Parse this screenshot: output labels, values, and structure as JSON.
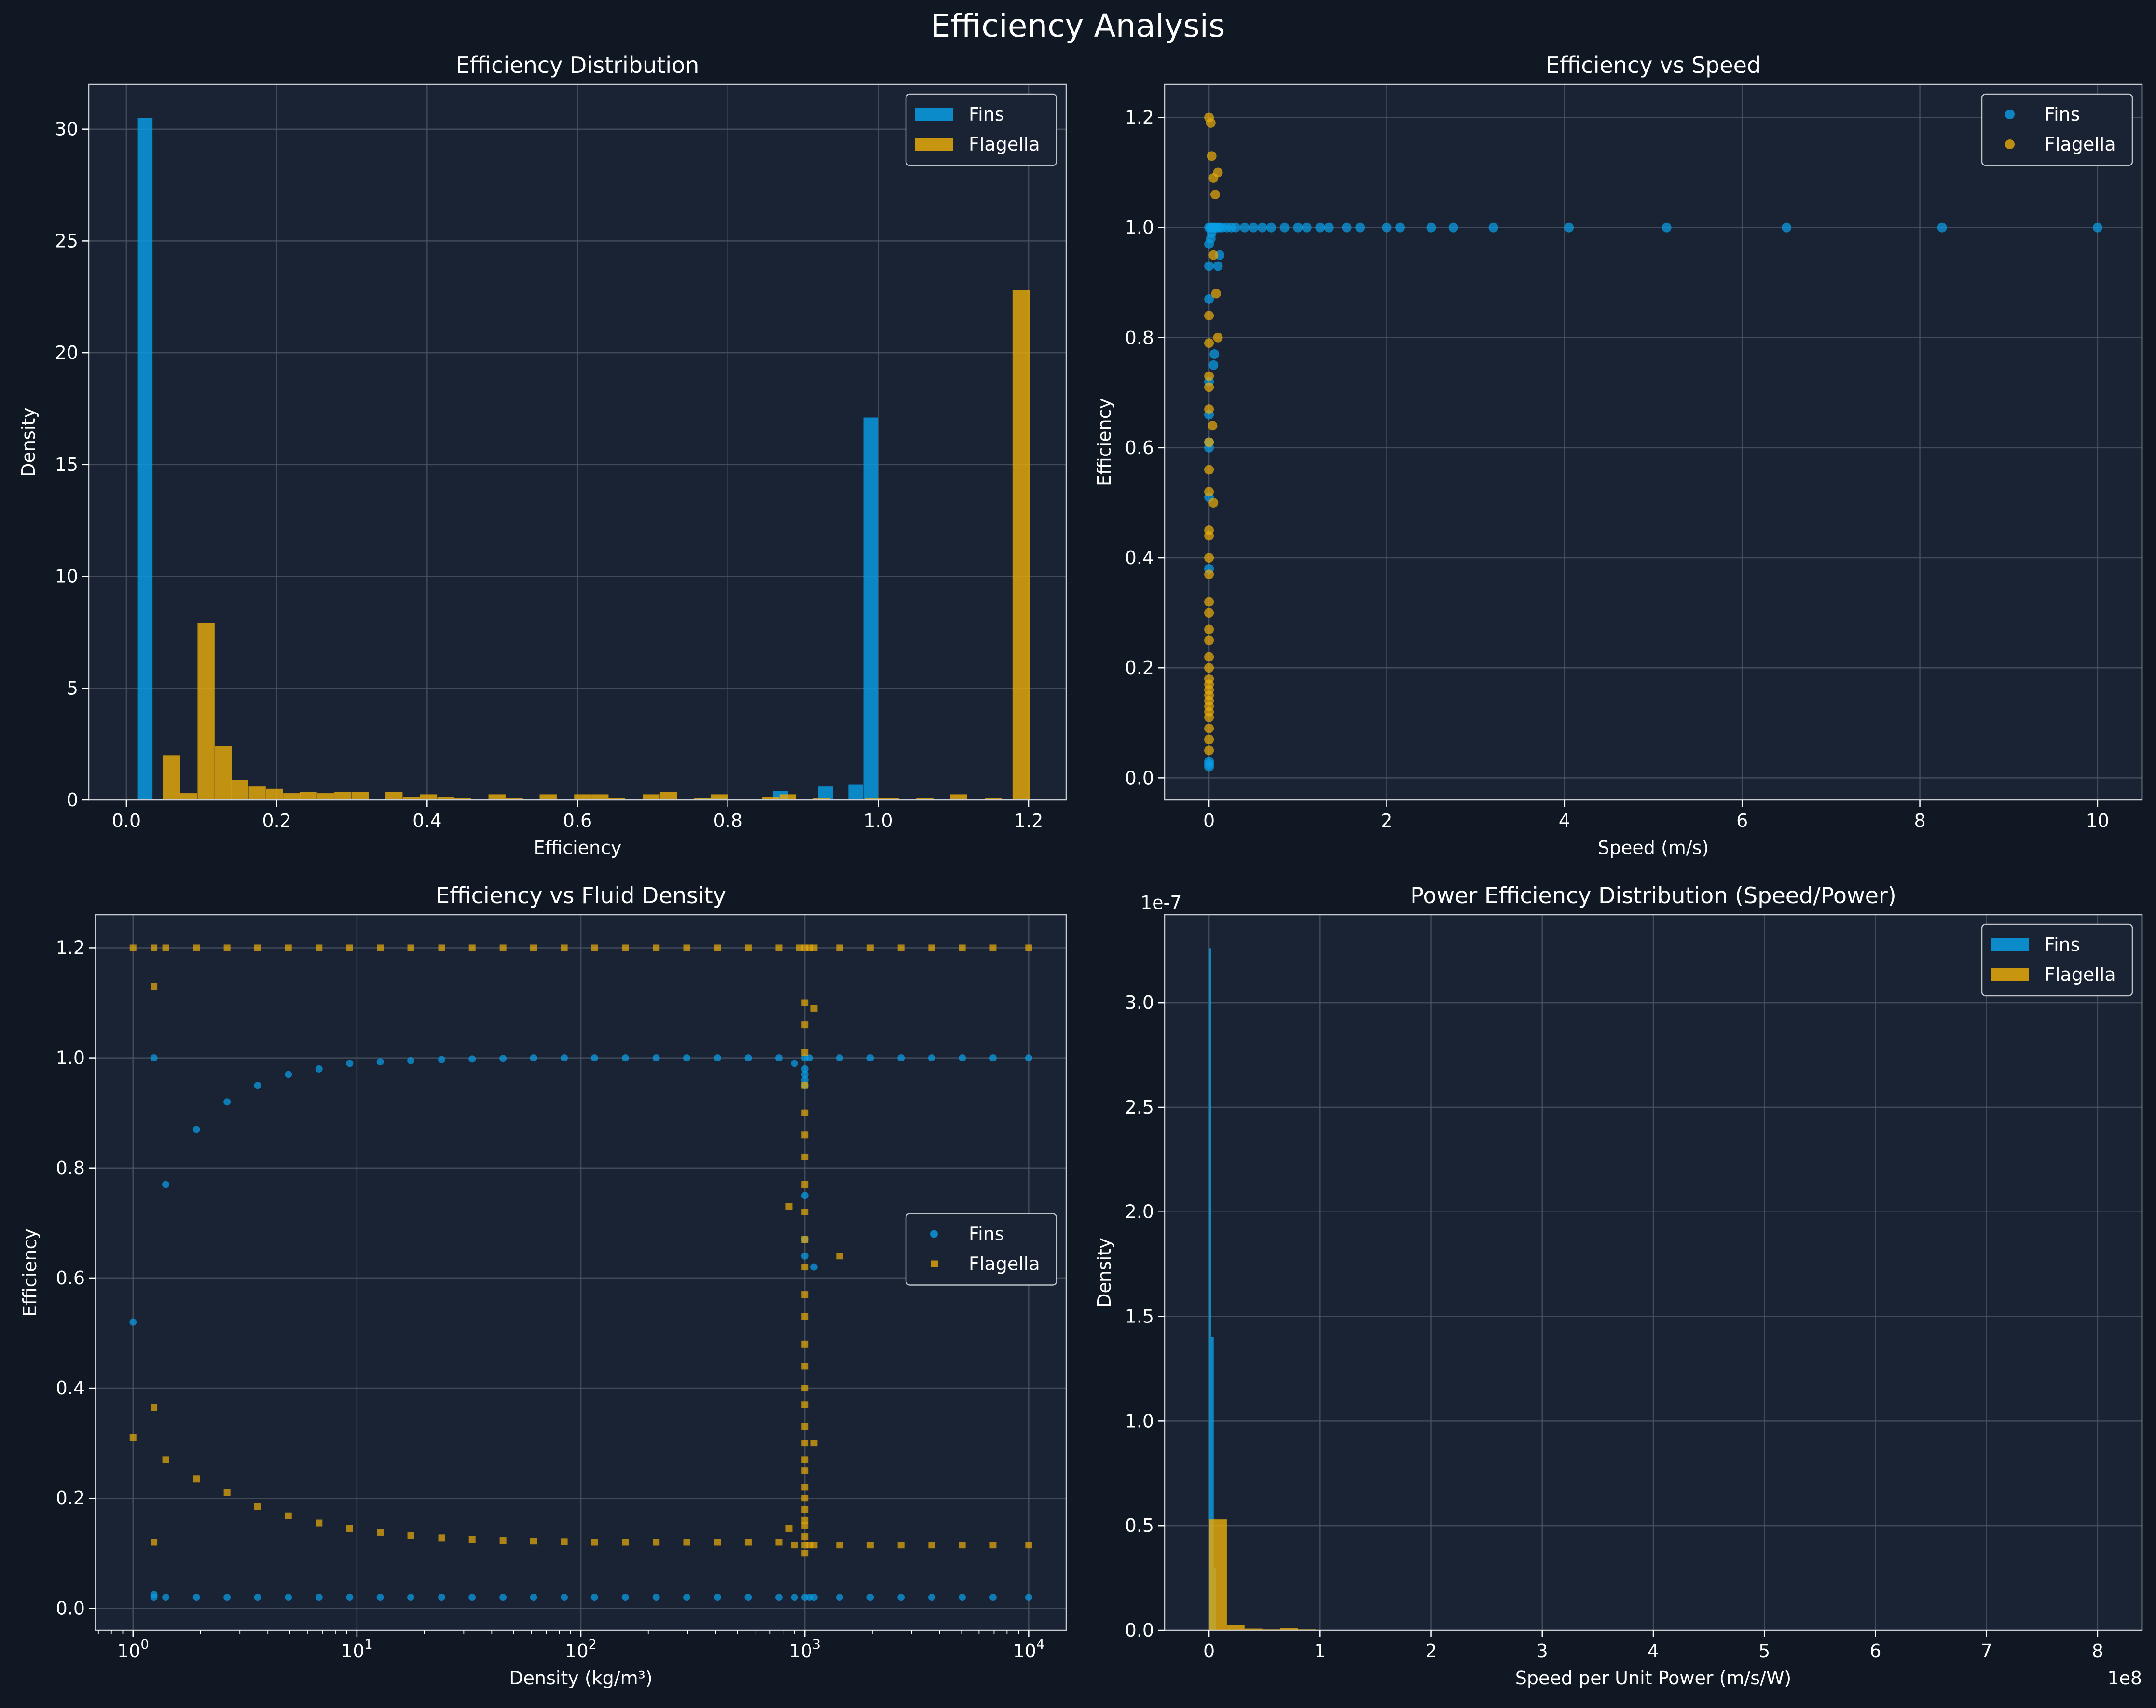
{
  "figure": {
    "title": "Efficiency Analysis"
  },
  "colors": {
    "background": "#0f1823",
    "axes": "#1a2333",
    "grid": "#4d5766",
    "fins": "#0a9ee6",
    "flagella": "#e6a90a",
    "text": "#ffffff"
  },
  "chart_data": [
    {
      "type": "bar",
      "title": "Efficiency Distribution",
      "xlabel": "Efficiency",
      "ylabel": "Density",
      "xlim": [
        -0.05,
        1.25
      ],
      "ylim": [
        0,
        32
      ],
      "xticks": [
        0.0,
        0.2,
        0.4,
        0.6,
        0.8,
        1.0,
        1.2
      ],
      "xtick_labels": [
        "0.0",
        "0.2",
        "0.4",
        "0.6",
        "0.8",
        "1.0",
        "1.2"
      ],
      "yticks": [
        0,
        5,
        10,
        15,
        20,
        25,
        30
      ],
      "ytick_labels": [
        "0",
        "5",
        "10",
        "15",
        "20",
        "25",
        "30"
      ],
      "legend_position": "upper-right",
      "series": [
        {
          "name": "Fins",
          "bar_width": 0.0196,
          "x": [
            0.025,
            0.77,
            0.79,
            0.87,
            0.93,
            0.97,
            0.99
          ],
          "values": [
            30.5,
            0.1,
            0.1,
            0.4,
            0.6,
            0.7,
            17.1
          ]
        },
        {
          "name": "Flagella",
          "bar_width": 0.0227,
          "x": [
            0.06,
            0.083,
            0.106,
            0.129,
            0.151,
            0.174,
            0.197,
            0.22,
            0.242,
            0.265,
            0.288,
            0.311,
            0.356,
            0.379,
            0.402,
            0.425,
            0.447,
            0.493,
            0.516,
            0.561,
            0.607,
            0.63,
            0.652,
            0.698,
            0.721,
            0.766,
            0.789,
            0.857,
            0.88,
            0.925,
            0.994,
            1.016,
            1.062,
            1.107,
            1.153,
            1.19
          ],
          "values": [
            2.0,
            0.3,
            7.9,
            2.4,
            0.9,
            0.6,
            0.5,
            0.3,
            0.35,
            0.3,
            0.35,
            0.35,
            0.35,
            0.15,
            0.25,
            0.15,
            0.1,
            0.25,
            0.1,
            0.25,
            0.25,
            0.25,
            0.1,
            0.25,
            0.35,
            0.1,
            0.25,
            0.15,
            0.25,
            0.1,
            0.1,
            0.1,
            0.1,
            0.25,
            0.1,
            22.8
          ]
        }
      ]
    },
    {
      "type": "scatter",
      "title": "Efficiency vs Speed",
      "xlabel": "Speed (m/s)",
      "ylabel": "Efficiency",
      "xlim": [
        -0.5,
        10.5
      ],
      "ylim": [
        -0.04,
        1.26
      ],
      "xticks": [
        0,
        2,
        4,
        6,
        8,
        10
      ],
      "xtick_labels": [
        "0",
        "2",
        "4",
        "6",
        "8",
        "10"
      ],
      "yticks": [
        0.0,
        0.2,
        0.4,
        0.6,
        0.8,
        1.0,
        1.2
      ],
      "ytick_labels": [
        "0.0",
        "0.2",
        "0.4",
        "0.6",
        "0.8",
        "1.0",
        "1.2"
      ],
      "legend_position": "upper-right",
      "series": [
        {
          "name": "Fins",
          "x": [
            0,
            0,
            0,
            0,
            0,
            0,
            0,
            0,
            0,
            0,
            0,
            0,
            0,
            0.02,
            0.03,
            0.05,
            0.06,
            0.08,
            0.1,
            0.12,
            0.15,
            0.2,
            0.25,
            0.3,
            0.4,
            0.5,
            0.6,
            0.7,
            0.85,
            1.0,
            1.1,
            1.25,
            1.35,
            1.55,
            1.7,
            2.0,
            2.15,
            2.5,
            2.75,
            3.2,
            4.05,
            5.15,
            6.5,
            8.25,
            10.0,
            0.05,
            0.06,
            0.1,
            0.12,
            0.02,
            0.03
          ],
          "y": [
            0.02,
            0.025,
            0.03,
            0.38,
            0.51,
            0.6,
            0.61,
            0.66,
            0.72,
            0.87,
            0.93,
            0.97,
            1.0,
            1.0,
            1.0,
            1.0,
            1.0,
            1.0,
            1.0,
            1.0,
            1.0,
            1.0,
            1.0,
            1.0,
            1.0,
            1.0,
            1.0,
            1.0,
            1.0,
            1.0,
            1.0,
            1.0,
            1.0,
            1.0,
            1.0,
            1.0,
            1.0,
            1.0,
            1.0,
            1.0,
            1.0,
            1.0,
            1.0,
            1.0,
            1.0,
            0.75,
            0.77,
            0.93,
            0.95,
            0.98,
            0.99
          ]
        },
        {
          "name": "Flagella",
          "x": [
            0,
            0,
            0,
            0,
            0,
            0,
            0,
            0,
            0,
            0,
            0,
            0,
            0,
            0,
            0,
            0,
            0,
            0,
            0,
            0,
            0,
            0,
            0,
            0,
            0,
            0,
            0,
            0,
            0,
            0,
            0.02,
            0.03,
            0.05,
            0.07,
            0.1,
            0.05,
            0.08,
            0.04,
            0.1,
            0.05
          ],
          "y": [
            0.05,
            0.07,
            0.09,
            0.11,
            0.12,
            0.13,
            0.14,
            0.15,
            0.16,
            0.17,
            0.18,
            0.2,
            0.22,
            0.25,
            0.27,
            0.3,
            0.32,
            0.37,
            0.4,
            0.44,
            0.45,
            0.52,
            0.56,
            0.61,
            0.67,
            0.71,
            0.73,
            0.79,
            0.84,
            1.2,
            1.19,
            1.13,
            1.09,
            1.06,
            1.1,
            0.95,
            0.88,
            0.64,
            0.8,
            0.5
          ]
        }
      ]
    },
    {
      "type": "scatter",
      "title": "Efficiency vs Fluid Density",
      "xlabel": "Density (kg/m³)",
      "ylabel": "Efficiency",
      "xscale": "log",
      "xlim": [
        0.68,
        14700
      ],
      "ylim": [
        -0.04,
        1.26
      ],
      "xticks": [
        1,
        10,
        100,
        1000,
        10000
      ],
      "xtick_base": "10",
      "xtick_exponents": [
        "0",
        "1",
        "2",
        "3",
        "4"
      ],
      "yticks": [
        0.0,
        0.2,
        0.4,
        0.6,
        0.8,
        1.0,
        1.2
      ],
      "ytick_labels": [
        "0.0",
        "0.2",
        "0.4",
        "0.6",
        "0.8",
        "1.0",
        "1.2"
      ],
      "legend_position": "center-right",
      "series": [
        {
          "name": "Fins",
          "marker": "circle",
          "x": [
            1,
            1.24,
            1.4,
            1.92,
            2.63,
            3.6,
            4.94,
            6.77,
            9.28,
            12.7,
            17.4,
            23.9,
            32.7,
            44.9,
            61.5,
            84.3,
            115,
            158,
            217,
            297,
            408,
            559,
            766,
            900,
            1000,
            1000,
            1000,
            1000,
            1000,
            1000,
            1000,
            1000,
            1100,
            1050,
            1430,
            1960,
            2690,
            3690,
            5050,
            6930,
            10000,
            1.24,
            1.4,
            1.92,
            2.63,
            3.6,
            4.94,
            6.77,
            9.28,
            12.7,
            17.4,
            23.9,
            32.7,
            44.9,
            61.5,
            84.3,
            115,
            158,
            217,
            297,
            408,
            559,
            766,
            900,
            1000,
            1050,
            1100,
            1430,
            1960,
            2690,
            3690,
            5050,
            6930,
            10000,
            1.24
          ],
          "y": [
            0.52,
            1.0,
            0.77,
            0.87,
            0.92,
            0.95,
            0.97,
            0.98,
            0.99,
            0.993,
            0.995,
            0.997,
            0.998,
            0.999,
            1.0,
            1.0,
            1.0,
            1.0,
            1.0,
            1.0,
            1.0,
            1.0,
            1.0,
            0.99,
            0.75,
            0.67,
            0.64,
            0.95,
            0.96,
            0.97,
            0.98,
            1.0,
            0.62,
            1.0,
            1.0,
            1.0,
            1.0,
            1.0,
            1.0,
            1.0,
            1.0,
            0.02,
            0.02,
            0.02,
            0.02,
            0.02,
            0.02,
            0.02,
            0.02,
            0.02,
            0.02,
            0.02,
            0.02,
            0.02,
            0.02,
            0.02,
            0.02,
            0.02,
            0.02,
            0.02,
            0.02,
            0.02,
            0.02,
            0.02,
            0.02,
            0.02,
            0.02,
            0.02,
            0.02,
            0.02,
            0.02,
            0.02,
            0.02,
            0.02,
            0.025
          ]
        },
        {
          "name": "Flagella",
          "marker": "square",
          "x": [
            1,
            1.24,
            1.4,
            1.92,
            2.63,
            3.6,
            4.94,
            6.77,
            9.28,
            12.7,
            17.4,
            23.9,
            32.7,
            44.9,
            61.5,
            84.3,
            115,
            158,
            217,
            297,
            408,
            559,
            766,
            950,
            1000,
            1050,
            1100,
            1430,
            1960,
            2690,
            3690,
            5050,
            6930,
            10000,
            1,
            1.24,
            1.4,
            1.92,
            2.63,
            3.6,
            4.94,
            6.77,
            9.28,
            12.7,
            17.4,
            23.9,
            32.7,
            44.9,
            61.5,
            84.3,
            115,
            158,
            217,
            297,
            408,
            559,
            766,
            850,
            1000,
            1000,
            1000,
            1000,
            1000,
            1000,
            1000,
            1000,
            1000,
            1000,
            1000,
            1000,
            1000,
            1000,
            1000,
            1000,
            1000,
            1000,
            1000,
            1000,
            1000,
            1000,
            1000,
            1000,
            1000,
            1000,
            1000,
            1000,
            1100,
            1100,
            1430,
            1.24,
            1.24,
            850,
            900,
            1000,
            1050,
            1100,
            1430,
            1960,
            2690,
            3690,
            5050,
            6930,
            10000
          ],
          "y": [
            1.2,
            1.2,
            1.2,
            1.2,
            1.2,
            1.2,
            1.2,
            1.2,
            1.2,
            1.2,
            1.2,
            1.2,
            1.2,
            1.2,
            1.2,
            1.2,
            1.2,
            1.2,
            1.2,
            1.2,
            1.2,
            1.2,
            1.2,
            1.2,
            1.2,
            1.2,
            1.2,
            1.2,
            1.2,
            1.2,
            1.2,
            1.2,
            1.2,
            1.2,
            0.31,
            0.365,
            0.27,
            0.235,
            0.21,
            0.185,
            0.168,
            0.155,
            0.145,
            0.138,
            0.132,
            0.128,
            0.125,
            0.123,
            0.122,
            0.121,
            0.12,
            0.12,
            0.12,
            0.12,
            0.12,
            0.12,
            0.12,
            0.73,
            1.1,
            1.06,
            1.01,
            0.95,
            0.9,
            0.86,
            0.82,
            0.77,
            0.72,
            0.67,
            0.62,
            0.57,
            0.53,
            0.48,
            0.44,
            0.4,
            0.37,
            0.33,
            0.3,
            0.27,
            0.25,
            0.22,
            0.2,
            0.18,
            0.16,
            0.15,
            0.13,
            0.1,
            1.09,
            0.3,
            0.64,
            1.13,
            0.12,
            0.145,
            0.115,
            0.115,
            0.115,
            0.115,
            0.115,
            0.115,
            0.115,
            0.115,
            0.115,
            0.115,
            0.115
          ]
        }
      ]
    },
    {
      "type": "bar",
      "title": "Power Efficiency Distribution (Speed/Power)",
      "xlabel": "Speed per Unit Power (m/s/W)",
      "ylabel": "Density",
      "xlim": [
        -40000000.0,
        840000000.0
      ],
      "ylim": [
        0,
        3.42e-07
      ],
      "xticks": [
        0,
        100000000.0,
        200000000.0,
        300000000.0,
        400000000.0,
        500000000.0,
        600000000.0,
        700000000.0,
        800000000.0
      ],
      "xtick_labels": [
        "0",
        "1",
        "2",
        "3",
        "4",
        "5",
        "6",
        "7",
        "8"
      ],
      "x_offset_label": "1e8",
      "yticks": [
        0,
        5e-08,
        1e-07,
        1.5e-07,
        2e-07,
        2.5e-07,
        3e-07
      ],
      "ytick_labels": [
        "0.0",
        "0.5",
        "1.0",
        "1.5",
        "2.0",
        "2.5",
        "3.0"
      ],
      "y_offset_label": "1e-7",
      "legend_position": "upper-right",
      "series": [
        {
          "name": "Fins",
          "bar_width": 2100000.0,
          "x": [
            1050000.0,
            3150000.0,
            5250000.0
          ],
          "values": [
            3.26e-07,
            1.4e-07,
            3e-08
          ]
        },
        {
          "name": "Flagella",
          "bar_width": 16000000.0,
          "x": [
            8000000.0,
            24000000.0,
            40000000.0,
            56000000.0,
            72000000.0,
            88000000.0
          ],
          "values": [
            5.3e-08,
            2.5e-09,
            8e-10,
            4e-10,
            1e-09,
            4e-10
          ]
        }
      ]
    }
  ]
}
